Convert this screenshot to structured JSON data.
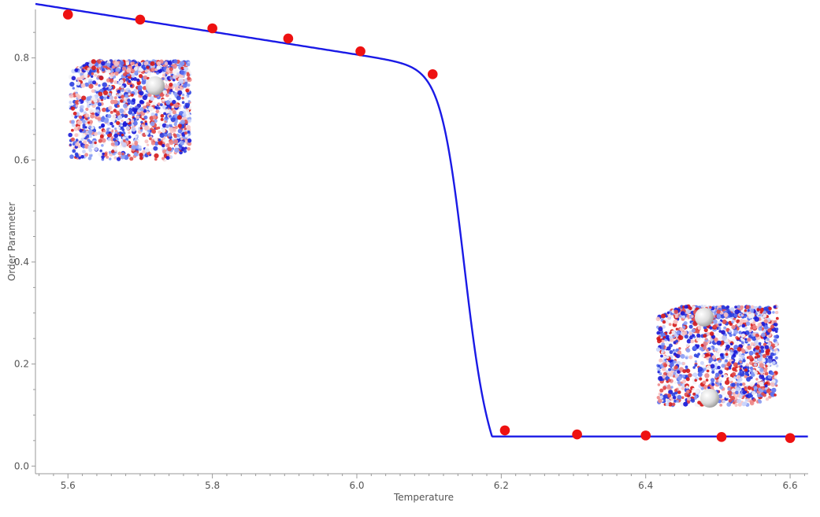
{
  "chart_data": {
    "type": "scatter",
    "xlabel": "Temperature",
    "ylabel": "Order Parameter",
    "xlim": [
      5.555,
      6.625
    ],
    "ylim": [
      -0.015,
      0.895
    ],
    "x_ticks": [
      5.6,
      5.8,
      6.0,
      6.2,
      6.4,
      6.6
    ],
    "x_tick_labels": [
      "5.6",
      "5.8",
      "6.0",
      "6.2",
      "6.4",
      "6.6"
    ],
    "y_ticks": [
      0.0,
      0.2,
      0.4,
      0.6,
      0.8
    ],
    "y_tick_labels": [
      "0.0",
      "0.2",
      "0.4",
      "0.6",
      "0.8"
    ],
    "grid": false,
    "series": [
      {
        "kind": "points",
        "color": "#ee1111",
        "x": [
          5.6,
          5.7,
          5.8,
          5.905,
          6.005,
          6.105,
          6.205,
          6.305,
          6.4,
          6.505,
          6.6
        ],
        "y": [
          0.885,
          0.875,
          0.858,
          0.838,
          0.813,
          0.768,
          0.07,
          0.062,
          0.06,
          0.057,
          0.055
        ]
      },
      {
        "kind": "fit-curve",
        "color": "#1a1ae6",
        "model": {
          "transition": 6.148,
          "width": 0.016,
          "low": 0.058
        }
      }
    ],
    "insets": [
      {
        "name": "ordered-phase-snapshot",
        "position": "top-left"
      },
      {
        "name": "disordered-phase-snapshot",
        "position": "bottom-right"
      }
    ]
  }
}
